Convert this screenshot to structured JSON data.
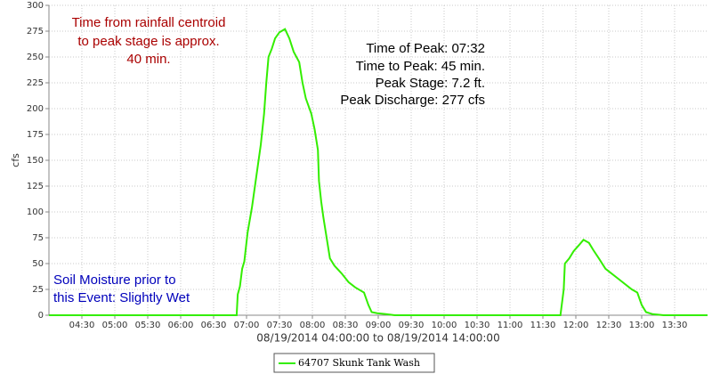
{
  "chart_data": {
    "type": "line",
    "y_label": "cfs",
    "x_label": "08/19/2014 04:00:00 to 08/19/2014 14:00:00",
    "annotations": [
      {
        "text": "Time from rainfall centroid",
        "color": "#aa0000"
      },
      {
        "text": "to peak stage is approx.",
        "color": "#aa0000"
      },
      {
        "text": "40 min.",
        "color": "#aa0000"
      },
      {
        "text": "Time of Peak: 07:32",
        "color": "#000000"
      },
      {
        "text": "Time to Peak: 45 min.",
        "color": "#000000"
      },
      {
        "text": "Peak Stage: 7.2 ft.",
        "color": "#000000"
      },
      {
        "text": "Peak Discharge: 277 cfs",
        "color": "#000000"
      },
      {
        "text": "Soil Moisture prior to",
        "color": "#0000bb"
      },
      {
        "text": "this Event: Slightly Wet",
        "color": "#0000bb"
      }
    ],
    "x": [
      "04:00",
      "06:51",
      "06:52",
      "06:54",
      "06:56",
      "06:58",
      "07:01",
      "07:05",
      "07:09",
      "07:13",
      "07:16",
      "07:18",
      "07:20",
      "07:23",
      "07:26",
      "07:30",
      "07:35",
      "07:39",
      "07:43",
      "07:48",
      "07:51",
      "07:54",
      "07:59",
      "08:02",
      "08:05",
      "08:06",
      "08:08",
      "08:10",
      "08:13",
      "08:16",
      "08:20",
      "08:27",
      "08:33",
      "08:39",
      "08:47",
      "08:51",
      "08:54",
      "08:59",
      "09:07",
      "09:15",
      "11:42",
      "11:46",
      "11:49",
      "11:50",
      "11:54",
      "11:58",
      "12:03",
      "12:07",
      "12:12",
      "12:16",
      "12:21",
      "12:27",
      "12:39",
      "12:51",
      "12:56",
      "13:00",
      "13:04",
      "13:10",
      "13:20",
      "14:00"
    ],
    "series": [
      {
        "name": "64707 Skunk Tank Wash",
        "color": "#33ee00",
        "values": [
          0,
          0,
          20,
          28,
          45,
          52,
          80,
          105,
          135,
          165,
          195,
          225,
          250,
          258,
          268,
          274,
          277,
          268,
          255,
          245,
          225,
          210,
          195,
          180,
          160,
          130,
          110,
          95,
          75,
          55,
          48,
          40,
          32,
          27,
          22,
          10,
          3,
          2,
          1,
          0,
          0,
          0,
          25,
          50,
          55,
          62,
          68,
          73,
          70,
          63,
          55,
          45,
          35,
          25,
          22,
          10,
          3,
          1,
          0,
          0
        ]
      }
    ],
    "xlim": [
      "04:00",
      "14:00"
    ],
    "xticks": [
      "04:30",
      "05:00",
      "05:30",
      "06:00",
      "06:30",
      "07:00",
      "07:30",
      "08:00",
      "08:30",
      "09:00",
      "09:30",
      "10:00",
      "10:30",
      "11:00",
      "11:30",
      "12:00",
      "12:30",
      "13:00",
      "13:30"
    ],
    "ylim": [
      0,
      300
    ],
    "yticks": [
      0,
      25,
      50,
      75,
      100,
      125,
      150,
      175,
      200,
      225,
      250,
      275,
      300
    ],
    "grid": true,
    "legend": "bottom"
  }
}
